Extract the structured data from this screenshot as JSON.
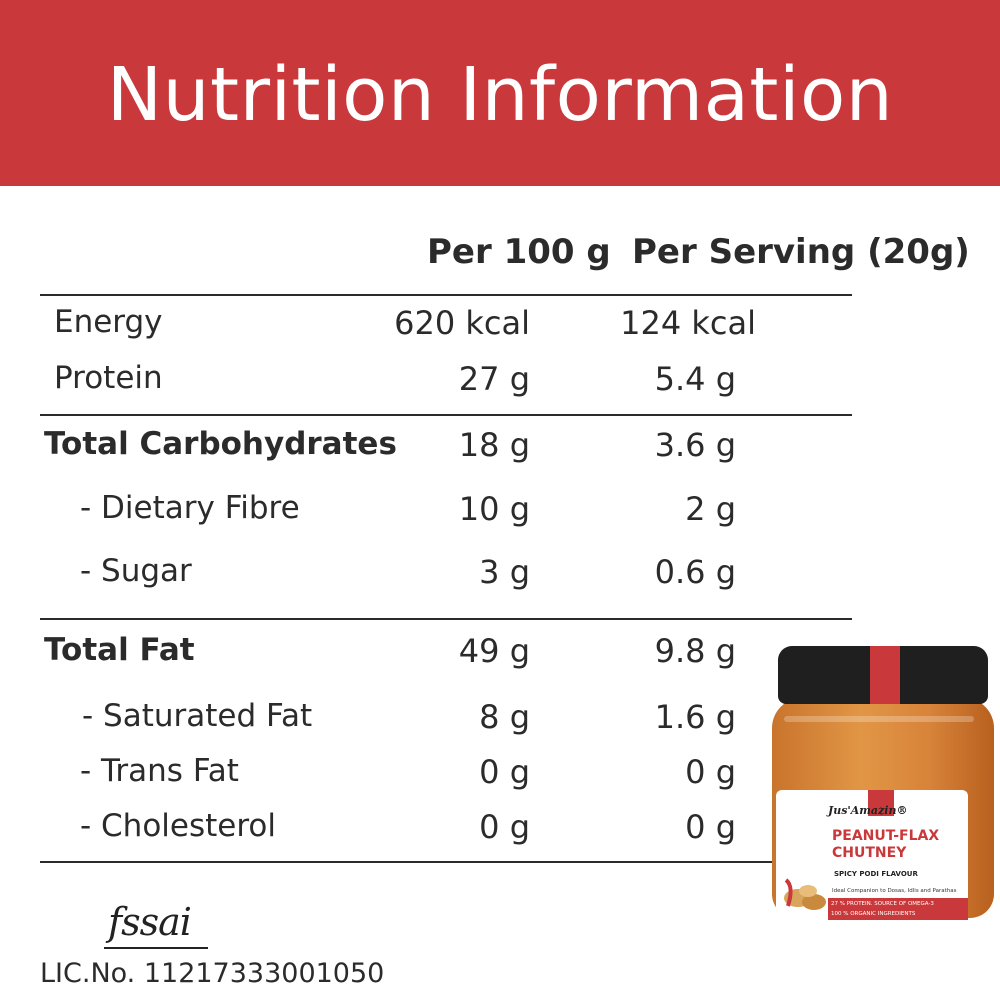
{
  "title": "Nutrition Information",
  "columns": {
    "per100": "Per 100 g",
    "perServing": "Per Serving (20g)"
  },
  "rows": [
    {
      "label": "Energy",
      "per100": "620 kcal",
      "perServing": "124 kcal"
    },
    {
      "label": "Protein",
      "per100": "27 g",
      "perServing": "5.4 g"
    },
    {
      "label": "Total Carbohydrates",
      "per100": "18 g",
      "perServing": "3.6 g"
    },
    {
      "label": "- Dietary Fibre",
      "per100": "10 g",
      "perServing": "2 g"
    },
    {
      "label": "- Sugar",
      "per100": "3 g",
      "perServing": "0.6 g"
    },
    {
      "label": "Total Fat",
      "per100": "49 g",
      "perServing": "9.8 g"
    },
    {
      "label": "- Saturated Fat",
      "per100": "8 g",
      "perServing": "1.6 g"
    },
    {
      "label": "- Trans Fat",
      "per100": "0 g",
      "perServing": "0 g"
    },
    {
      "label": "- Cholesterol",
      "per100": "0 g",
      "perServing": "0 g"
    }
  ],
  "product": {
    "brand": "Jus'Amazin®",
    "name_line1": "PEANUT-FLAX",
    "name_line2": "CHUTNEY",
    "flavour": "SPICY PODI FLAVOUR",
    "tagline": "Ideal Companion to Dosas, Idlis and Parathas",
    "claim1": "27 % PROTEIN. SOURCE OF OMEGA-3",
    "claim2": "100 % ORGANIC INGREDIENTS"
  },
  "fssai": {
    "logo": "fssai",
    "license": "LIC.No. 11217333001050"
  },
  "colors": {
    "accent": "#c9383a",
    "text": "#2b2b2b"
  }
}
